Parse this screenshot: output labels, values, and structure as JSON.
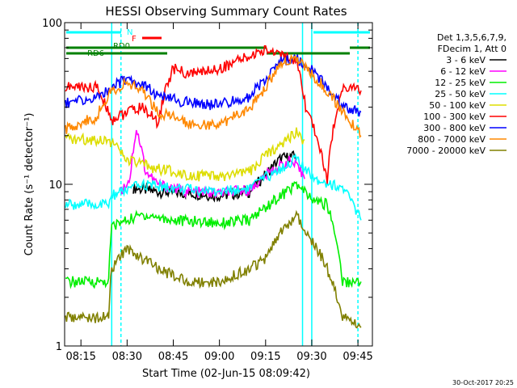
{
  "chart_data": {
    "type": "line",
    "title": "HESSI Observing Summary Count Rates",
    "xlabel": "Start Time (02-Jun-15 08:09:42)",
    "ylabel": "Count Rate (s⁻¹ detector⁻¹)",
    "y_scale": "log",
    "ylim": [
      1,
      100
    ],
    "xlim_minutes_after_0809": [
      0,
      100
    ],
    "x_ticks": [
      "08:15",
      "08:30",
      "08:45",
      "09:00",
      "09:15",
      "09:30",
      "09:45"
    ],
    "y_ticks": [
      "1",
      "10",
      "100"
    ],
    "legend_header": [
      "Det 1,3,5,6,7,9,",
      "FDecim 1, Att 0"
    ],
    "legend_placement": "right",
    "grid": false,
    "series": [
      {
        "name": "3 - 6 keV",
        "color": "#000000",
        "x": [
          "08:25",
          "08:32",
          "08:40",
          "08:50",
          "09:00",
          "09:10",
          "09:15",
          "09:20",
          "09:25",
          "09:30"
        ],
        "values": [
          null,
          9.5,
          9.0,
          8.8,
          8.5,
          9.0,
          11.5,
          14.5,
          15.0,
          null
        ]
      },
      {
        "name": "6 - 12 keV",
        "color": "#ff00ff",
        "x": [
          "08:25",
          "08:28",
          "08:31",
          "08:33",
          "08:36",
          "08:40",
          "08:50",
          "09:00",
          "09:10",
          "09:18",
          "09:23",
          "09:28",
          "09:30"
        ],
        "values": [
          null,
          9.0,
          11.0,
          22.0,
          12.0,
          10.0,
          9.0,
          8.8,
          9.3,
          12.5,
          14.0,
          11.0,
          null
        ]
      },
      {
        "name": "12 - 25 keV",
        "color": "#00ee00",
        "x": [
          "08:10",
          "08:24",
          "08:25",
          "08:35",
          "08:45",
          "09:00",
          "09:10",
          "09:20",
          "09:25",
          "09:30",
          "09:35",
          "09:40",
          "09:46"
        ],
        "values": [
          2.5,
          2.5,
          5.5,
          6.5,
          6.0,
          5.8,
          6.0,
          8.5,
          10.0,
          8.0,
          7.5,
          2.5,
          2.5
        ]
      },
      {
        "name": "25 - 50 keV",
        "color": "#00ffff",
        "x": [
          "08:10",
          "08:24",
          "08:25",
          "08:35",
          "08:45",
          "09:00",
          "09:10",
          "09:20",
          "09:25",
          "09:28",
          "09:33",
          "09:40",
          "09:46"
        ],
        "values": [
          7.5,
          7.5,
          8.5,
          10.0,
          9.5,
          9.0,
          9.5,
          12.5,
          14.5,
          12.0,
          10.5,
          9.5,
          6.0
        ]
      },
      {
        "name": "50 - 100 keV",
        "color": "#dddd00",
        "x": [
          "08:10",
          "08:24",
          "08:30",
          "08:40",
          "08:50",
          "09:00",
          "09:10",
          "09:15",
          "09:20",
          "09:25",
          "09:28",
          "09:30"
        ],
        "values": [
          19.0,
          19.0,
          14.0,
          12.5,
          11.5,
          11.0,
          12.0,
          15.0,
          18.0,
          21.0,
          18.0,
          null
        ]
      },
      {
        "name": "100 - 300 keV",
        "color": "#ff0000",
        "x": [
          "08:10",
          "08:20",
          "08:25",
          "08:30",
          "08:35",
          "08:40",
          "08:45",
          "08:50",
          "09:00",
          "09:10",
          "09:15",
          "09:20",
          "09:25",
          "09:28",
          "09:35",
          "09:40",
          "09:46"
        ],
        "values": [
          40,
          40,
          25,
          28,
          30,
          24,
          52,
          48,
          52,
          62,
          68,
          65,
          55,
          30,
          10,
          40,
          38
        ]
      },
      {
        "name": "300 - 800 keV",
        "color": "#0000ff",
        "x": [
          "08:10",
          "08:20",
          "08:25",
          "08:30",
          "08:35",
          "08:40",
          "08:50",
          "09:00",
          "09:10",
          "09:15",
          "09:20",
          "09:25",
          "09:28",
          "09:35",
          "09:40",
          "09:46"
        ],
        "values": [
          32,
          34,
          40,
          45,
          42,
          35,
          32,
          31,
          35,
          45,
          58,
          60,
          55,
          40,
          30,
          28
        ]
      },
      {
        "name": "800 - 7000 keV",
        "color": "#ff8800",
        "x": [
          "08:10",
          "08:20",
          "08:25",
          "08:30",
          "08:35",
          "08:40",
          "08:50",
          "09:00",
          "09:10",
          "09:15",
          "09:20",
          "09:25",
          "09:28",
          "09:35",
          "09:40",
          "09:46"
        ],
        "values": [
          22,
          26,
          38,
          42,
          38,
          28,
          24,
          23,
          30,
          40,
          55,
          62,
          52,
          38,
          28,
          20
        ]
      },
      {
        "name": "7000 - 20000 keV",
        "color": "#808000",
        "x": [
          "08:10",
          "08:24",
          "08:25",
          "08:30",
          "08:40",
          "08:50",
          "09:00",
          "09:10",
          "09:15",
          "09:20",
          "09:25",
          "09:30",
          "09:35",
          "09:40",
          "09:46"
        ],
        "values": [
          1.5,
          1.5,
          3.0,
          4.0,
          3.0,
          2.5,
          2.5,
          3.0,
          3.5,
          5.0,
          6.5,
          4.5,
          3.0,
          1.5,
          1.3
        ]
      }
    ],
    "flags": [
      {
        "label": "N",
        "color": "#00ffff"
      },
      {
        "label": "F",
        "color": "#ff0000"
      },
      {
        "label": "RD0",
        "color": "#008000"
      },
      {
        "label": "RD6",
        "color": "#008000"
      }
    ],
    "footer_date": "30-Oct-2017 20:25"
  }
}
